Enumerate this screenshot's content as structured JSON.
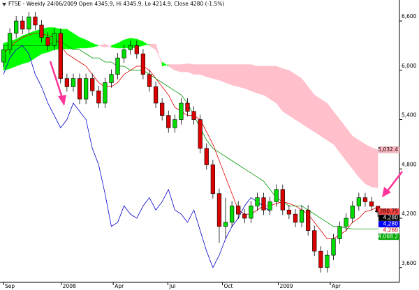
{
  "chart_data": {
    "type": "candlestick",
    "title": "FTSE - Weekly 24/06/2009 Open 4345.9, Hi 4345.9, Lo 4214.9, Close 4280 (-1.5%)",
    "xlim": [
      -0.55,
      62.4
    ],
    "xticks": [
      {
        "value": 0,
        "label": "Sep"
      },
      {
        "value": 9.1,
        "label": "2008"
      },
      {
        "value": 17.3,
        "label": "Apr"
      },
      {
        "value": 25.9,
        "label": "Jul"
      },
      {
        "value": 34.5,
        "label": "Oct"
      },
      {
        "value": 43.3,
        "label": "2009"
      },
      {
        "value": 51.5,
        "label": "Apr"
      }
    ],
    "ylim": [
      3420,
      6855
    ],
    "yticks": [
      {
        "value": 3600,
        "label": "3,600"
      },
      {
        "value": 4200,
        "label": "4,200"
      },
      {
        "value": 4800,
        "label": "4,800"
      },
      {
        "value": 5400,
        "label": "5,400"
      },
      {
        "value": 6000,
        "label": "6,000"
      },
      {
        "value": 6600,
        "label": "6,600"
      }
    ],
    "candles": {
      "up_color": "#00dd00",
      "down_color": "#dd0000",
      "open": [
        6100,
        6250,
        6450,
        6600,
        6500,
        6650,
        6550,
        6400,
        6300,
        6450,
        5900,
        5800,
        5900,
        5650,
        5900,
        5750,
        5600,
        5850,
        5950,
        6150,
        6250,
        6300,
        6200,
        5950,
        5800,
        5600,
        5450,
        5300,
        5400,
        5600,
        5500,
        5400,
        5050,
        4850,
        4500,
        4100,
        4150,
        4350,
        4250,
        4200,
        4350,
        4450,
        4300,
        4400,
        4550,
        4300,
        4250,
        4150,
        4300,
        4050,
        3800,
        3600,
        3750,
        3950,
        4100,
        4200,
        4350,
        4450,
        4400,
        4345.9
      ],
      "high": [
        6310,
        6510,
        6660,
        6660,
        6710,
        6710,
        6610,
        6460,
        6510,
        6510,
        5960,
        5960,
        5960,
        5960,
        5960,
        5810,
        5910,
        6010,
        6210,
        6310,
        6360,
        6360,
        6260,
        6010,
        5860,
        5660,
        5510,
        5460,
        5660,
        5660,
        5560,
        5460,
        5110,
        4910,
        4560,
        4450,
        4410,
        4410,
        4310,
        4410,
        4510,
        4510,
        4460,
        4610,
        4610,
        4360,
        4310,
        4360,
        4360,
        4110,
        3860,
        3810,
        4010,
        4160,
        4260,
        4410,
        4510,
        4510,
        4460,
        4345.9
      ],
      "low": [
        6040,
        6190,
        6390,
        6440,
        6440,
        6490,
        6340,
        6240,
        6240,
        5840,
        5740,
        5740,
        5590,
        5590,
        5690,
        5540,
        5540,
        5790,
        5890,
        6090,
        6190,
        6140,
        5890,
        5740,
        5540,
        5390,
        5240,
        5240,
        5340,
        5440,
        5340,
        4990,
        4790,
        4440,
        3900,
        3950,
        4090,
        4190,
        4140,
        4140,
        4290,
        4240,
        4240,
        4340,
        4240,
        4190,
        4090,
        4090,
        3990,
        3740,
        3540,
        3540,
        3690,
        3890,
        4040,
        4140,
        4290,
        4340,
        4290,
        4214.9
      ],
      "close": [
        6250,
        6450,
        6600,
        6500,
        6650,
        6550,
        6400,
        6300,
        6450,
        5900,
        5800,
        5900,
        5650,
        5900,
        5750,
        5600,
        5850,
        5950,
        6150,
        6250,
        6300,
        6200,
        5950,
        5800,
        5600,
        5450,
        5300,
        5400,
        5600,
        5500,
        5400,
        5050,
        4850,
        4500,
        4100,
        4150,
        4350,
        4250,
        4200,
        4350,
        4450,
        4300,
        4400,
        4550,
        4300,
        4250,
        4150,
        4300,
        4050,
        3800,
        3600,
        3750,
        3950,
        4100,
        4200,
        4350,
        4450,
        4400,
        4345.9,
        4280
      ]
    },
    "cloud": {
      "up_color": "#00ff00",
      "down_color": "#ffc0cb",
      "span_a": [
        6330,
        6350,
        6380,
        6420,
        6450,
        6480,
        6500,
        6520,
        6520,
        6500,
        6500,
        6450,
        6400,
        6370,
        6330,
        6300,
        6280,
        6300,
        6330,
        6370,
        6390,
        6380,
        6350,
        6300,
        6250,
        6100,
        6050,
        6000,
        5980,
        5980,
        5950,
        5950,
        5920,
        5900,
        5880,
        5850,
        5820,
        5800,
        5780,
        5750,
        5720,
        5700,
        5650,
        5600,
        5500,
        5450,
        5400,
        5350,
        5300,
        5250,
        5200,
        5150,
        5100,
        5000,
        4900,
        4800,
        4700,
        4620,
        4580,
        4570
      ],
      "span_b": [
        6000,
        6020,
        6050,
        6080,
        6100,
        6150,
        6200,
        6220,
        6250,
        6260,
        6260,
        6260,
        6270,
        6270,
        6280,
        6300,
        6320,
        6280,
        6270,
        6270,
        6270,
        6280,
        6300,
        6320,
        6320,
        6050,
        6070,
        6070,
        6070,
        6080,
        6070,
        6070,
        6070,
        6070,
        6070,
        6070,
        6070,
        6070,
        6070,
        6070,
        6050,
        6050,
        6050,
        6050,
        6020,
        6000,
        5950,
        5900,
        5800,
        5700,
        5650,
        5600,
        5500,
        5400,
        5300,
        5200,
        5150,
        5100,
        5060,
        5032
      ]
    },
    "lines": [
      {
        "color": "#e00000",
        "values": [
          6200,
          6280,
          6350,
          6400,
          6430,
          6450,
          6450,
          6420,
          6400,
          6300,
          6200,
          6150,
          6100,
          6050,
          5950,
          5850,
          5800,
          5800,
          5850,
          5950,
          6000,
          6050,
          6050,
          6000,
          5900,
          5800,
          5700,
          5550,
          5500,
          5450,
          5450,
          5400,
          5250,
          5100,
          4900,
          4700,
          4500,
          4300,
          4250,
          4250,
          4300,
          4350,
          4350,
          4380,
          4400,
          4380,
          4350,
          4300,
          4250,
          4150,
          4050,
          3950,
          3950,
          4000,
          4050,
          4150,
          4200,
          4280,
          4300,
          4340
        ]
      },
      {
        "color": "#009900",
        "values": [
          6300,
          6300,
          6300,
          6300,
          6300,
          6300,
          6300,
          6300,
          6350,
          6350,
          6300,
          6250,
          6250,
          6200,
          6150,
          6150,
          6100,
          6100,
          6050,
          6050,
          6000,
          6000,
          6000,
          5950,
          5900,
          5850,
          5800,
          5750,
          5700,
          5600,
          5450,
          5300,
          5150,
          5050,
          5000,
          4950,
          4900,
          4850,
          4800,
          4750,
          4700,
          4650,
          4550,
          4450,
          4400,
          4350,
          4350,
          4350,
          4300,
          4250,
          4200,
          4150,
          4100,
          4100,
          4080,
          4070,
          4070,
          4068,
          4068,
          4068
        ]
      },
      {
        "color": "#0000cc",
        "values": [
          5950,
          6150,
          6250,
          6300,
          6200,
          5950,
          5800,
          5600,
          5450,
          5300,
          5400,
          5600,
          5500,
          5400,
          5050,
          4850,
          4500,
          4100,
          4150,
          4350,
          4250,
          4200,
          4350,
          4450,
          4300,
          4400,
          4550,
          4300,
          4250,
          4150,
          4300,
          4050,
          3800,
          3600,
          3750,
          3950,
          4100,
          4200,
          4350,
          4450,
          4400,
          4345.9,
          4280,
          null,
          null,
          null,
          null,
          null,
          null,
          null,
          null,
          null,
          null,
          null,
          null,
          null,
          null,
          null,
          null,
          null
        ]
      }
    ],
    "price_tags": [
      {
        "value": 5032.4,
        "label": "5,032.4",
        "bg": "#ffb6c1",
        "fg": "#000000"
      },
      {
        "value": 4280.75,
        "label": "4,280.75",
        "bg": "#ff4444",
        "fg": "#000000"
      },
      {
        "value": 4260,
        "label": "4,260",
        "bg": "#ffffff",
        "fg": "#dd0000"
      },
      {
        "value": 4280,
        "label": "4,280",
        "bg": "#000000",
        "fg": "#ffffff"
      },
      {
        "value": 4280,
        "label": "4,280",
        "bg": "#0000ff",
        "fg": "#ffffff"
      },
      {
        "value": 4068.2,
        "label": "4,068.2",
        "bg": "#00aa00",
        "fg": "#ffffff"
      }
    ]
  }
}
